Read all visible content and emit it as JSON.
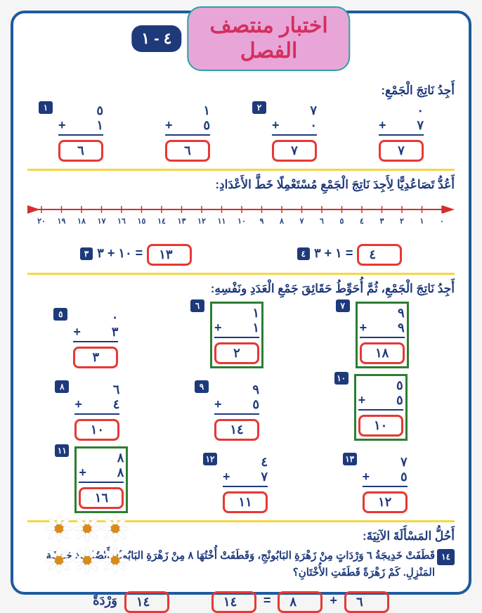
{
  "header": {
    "chapter": "٤ - ١",
    "title_l1": "اختبار منتصف",
    "title_l2": "الفصل"
  },
  "s1": {
    "title": "أَجِدُ نَاتِجَ الْجَمْعِ:",
    "problems": [
      {
        "n": "١",
        "a": "٥",
        "b": "١",
        "ans": "٦"
      },
      {
        "n": "",
        "a": "١",
        "b": "٥",
        "ans": "٦"
      },
      {
        "n": "٢",
        "a": "٧",
        "b": "٠",
        "ans": "٧"
      },
      {
        "n": "",
        "a": "٠",
        "b": "٧",
        "ans": "٧"
      }
    ]
  },
  "s2": {
    "title": "أَعُدُّ تَصَاعُدِيًّا لِأَجِدَ نَاتِجَ الْجَمْعِ مُسْتَعْمِلًا خَطَّ الأَعْدَادِ:",
    "ticks": [
      "٢٠",
      "١٩",
      "١٨",
      "١٧",
      "١٦",
      "١٥",
      "١٤",
      "١٣",
      "١٢",
      "١١",
      "١٠",
      "٩",
      "٨",
      "٧",
      "٦",
      "٥",
      "٤",
      "٣",
      "٢",
      "١",
      "٠"
    ],
    "eqs": [
      {
        "n": "٣",
        "expr": "١٠ + ٣ =",
        "ans": "١٣"
      },
      {
        "n": "٤",
        "expr": "١ + ٣ =",
        "ans": "٤"
      }
    ]
  },
  "s3": {
    "title": "أَجِدُ نَاتِجَ الْجَمْعِ، ثُمَّ أُحَوِّطُ حَقَائِقَ جَمْعِ الْعَدَدِ ونَفْسِهِ:",
    "r1": [
      {
        "n": "٥",
        "a": "٠",
        "b": "٣",
        "ans": "٣",
        "double": false
      },
      {
        "n": "٦",
        "a": "١",
        "b": "١",
        "ans": "٢",
        "double": true
      },
      {
        "n": "٧",
        "a": "٩",
        "b": "٩",
        "ans": "١٨",
        "double": true
      }
    ],
    "r2": [
      {
        "n": "٨",
        "a": "٦",
        "b": "٤",
        "ans": "١٠",
        "double": false
      },
      {
        "n": "٩",
        "a": "٩",
        "b": "٥",
        "ans": "١٤",
        "double": false
      },
      {
        "n": "١٠",
        "a": "٥",
        "b": "٥",
        "ans": "١٠",
        "double": true
      }
    ],
    "r3": [
      {
        "n": "١١",
        "a": "٨",
        "b": "٨",
        "ans": "١٦",
        "double": true
      },
      {
        "n": "١٢",
        "a": "٤",
        "b": "٧",
        "ans": "١١",
        "double": false
      },
      {
        "n": "١٣",
        "a": "٧",
        "b": "٥",
        "ans": "١٢",
        "double": false
      }
    ]
  },
  "s4": {
    "title": "أَحُلُّ المَسْأَلَةَ الآتِيَةَ:",
    "n": "١٤",
    "text": "قَطَفَتْ خَدِيجَةُ ٦ وَرْدَاتٍ مِنْ زَهْرَةِ البَابُونْجِ، وَقَطَفَتْ أُخْتُهَا ٨ مِنْ زَهْرَةِ البَابُونْجِ أَيْضًا مِنْ حَدِيقَةِ المَنْزِلِ. كَمْ زَهْرَةً قَطَفَتِ الأُخْتَانِ؟",
    "a": "٦",
    "b": "٨",
    "sum": "١٤",
    "total": "١٤",
    "unit": "وَرْدَةً"
  },
  "colors": {
    "frame": "#1e5b9e",
    "badge": "#1e3a7b",
    "answer_border": "#e53935",
    "double_border": "#2e7d32",
    "title_bg": "#e8a5d8",
    "title_text": "#d32f5e"
  }
}
